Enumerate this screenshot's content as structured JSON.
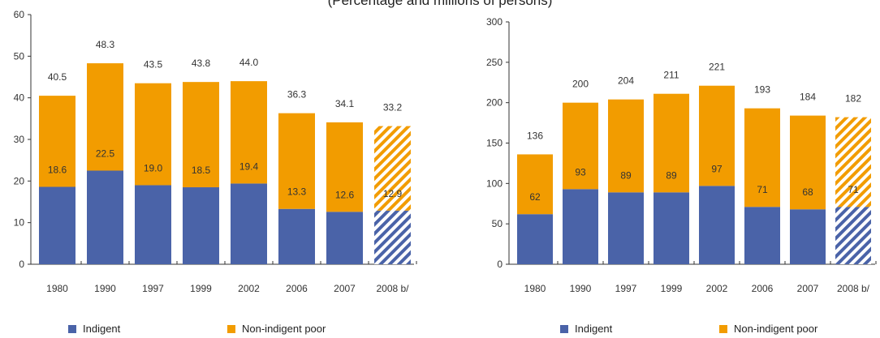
{
  "page": {
    "top_title_fragment": "(Percentage and millions of persons)"
  },
  "colors": {
    "indigent": "#4a63a8",
    "non_indigent": "#f29c00",
    "axis": "#333333"
  },
  "chart_data": [
    {
      "type": "bar",
      "stacked": true,
      "categories": [
        "1980",
        "1990",
        "1997",
        "1999",
        "2002",
        "2006",
        "2007",
        "2008 b/"
      ],
      "ylim": [
        0,
        60
      ],
      "yticks": [
        0,
        10,
        20,
        30,
        40,
        50,
        60
      ],
      "series": [
        {
          "name": "Indigent",
          "values": [
            18.6,
            22.5,
            19.0,
            18.5,
            19.4,
            13.3,
            12.6,
            12.9
          ],
          "labels": [
            "18.6",
            "22.5",
            "19.0",
            "18.5",
            "19.4",
            "13.3",
            "12.6",
            "12.9"
          ]
        },
        {
          "name": "Non-indigent poor",
          "values": [
            21.9,
            25.8,
            24.5,
            25.3,
            24.6,
            23.0,
            21.5,
            20.3
          ]
        }
      ],
      "totals": [
        40.5,
        48.3,
        43.5,
        43.8,
        44.0,
        36.3,
        34.1,
        33.2
      ],
      "total_labels": [
        "40.5",
        "48.3",
        "43.5",
        "43.8",
        "44.0",
        "36.3",
        "34.1",
        "33.2"
      ],
      "projected_category": "2008 b/",
      "legend": [
        "Indigent",
        "Non-indigent poor"
      ],
      "legend_position": "bottom",
      "grid": false
    },
    {
      "type": "bar",
      "stacked": true,
      "categories": [
        "1980",
        "1990",
        "1997",
        "1999",
        "2002",
        "2006",
        "2007",
        "2008 b/"
      ],
      "ylim": [
        0,
        300
      ],
      "yticks": [
        0,
        50,
        100,
        150,
        200,
        250,
        300
      ],
      "series": [
        {
          "name": "Indigent",
          "values": [
            62,
            93,
            89,
            89,
            97,
            71,
            68,
            71
          ],
          "labels": [
            "62",
            "93",
            "89",
            "89",
            "97",
            "71",
            "68",
            "71"
          ]
        },
        {
          "name": "Non-indigent poor",
          "values": [
            74,
            107,
            115,
            122,
            124,
            122,
            116,
            111
          ]
        }
      ],
      "totals": [
        136,
        200,
        204,
        211,
        221,
        193,
        184,
        182
      ],
      "total_labels": [
        "136",
        "200",
        "204",
        "211",
        "221",
        "193",
        "184",
        "182"
      ],
      "projected_category": "2008 b/",
      "legend": [
        "Indigent",
        "Non-indigent poor"
      ],
      "legend_position": "bottom",
      "grid": false
    }
  ]
}
